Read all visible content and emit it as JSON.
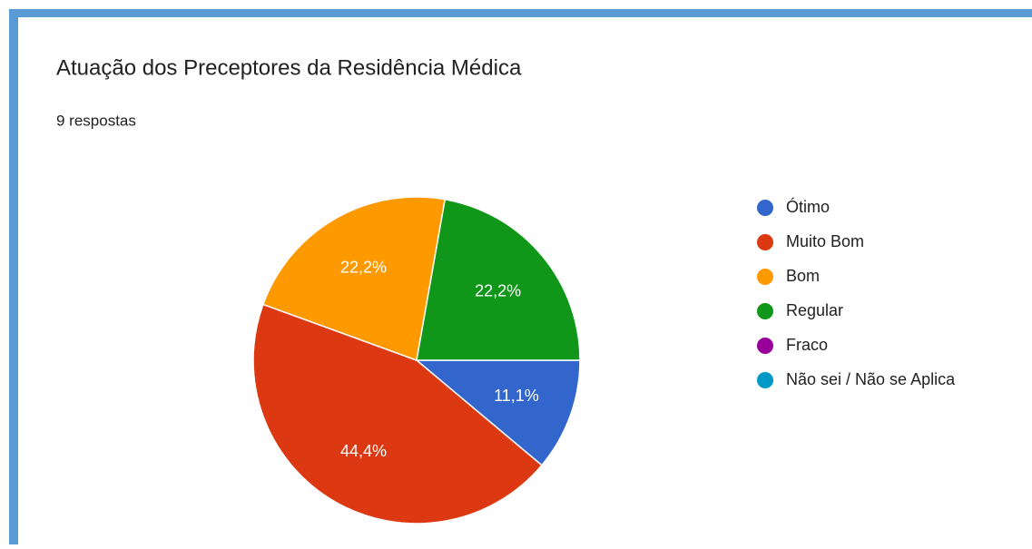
{
  "chart_data": {
    "type": "pie",
    "title": "Atuação dos Preceptores da Residência Médica",
    "subtitle": "9 respostas",
    "categories": [
      "Ótimo",
      "Muito Bom",
      "Bom",
      "Regular",
      "Fraco",
      "Não sei / Não se Aplica"
    ],
    "values": [
      11.1,
      44.4,
      22.2,
      22.2,
      0,
      0
    ],
    "value_labels": [
      "11,1%",
      "44,4%",
      "22,2%",
      "22,2%",
      null,
      null
    ],
    "colors": [
      "#3366cc",
      "#dc3912",
      "#ff9900",
      "#109618",
      "#990099",
      "#0099c6"
    ],
    "legend": "right"
  }
}
